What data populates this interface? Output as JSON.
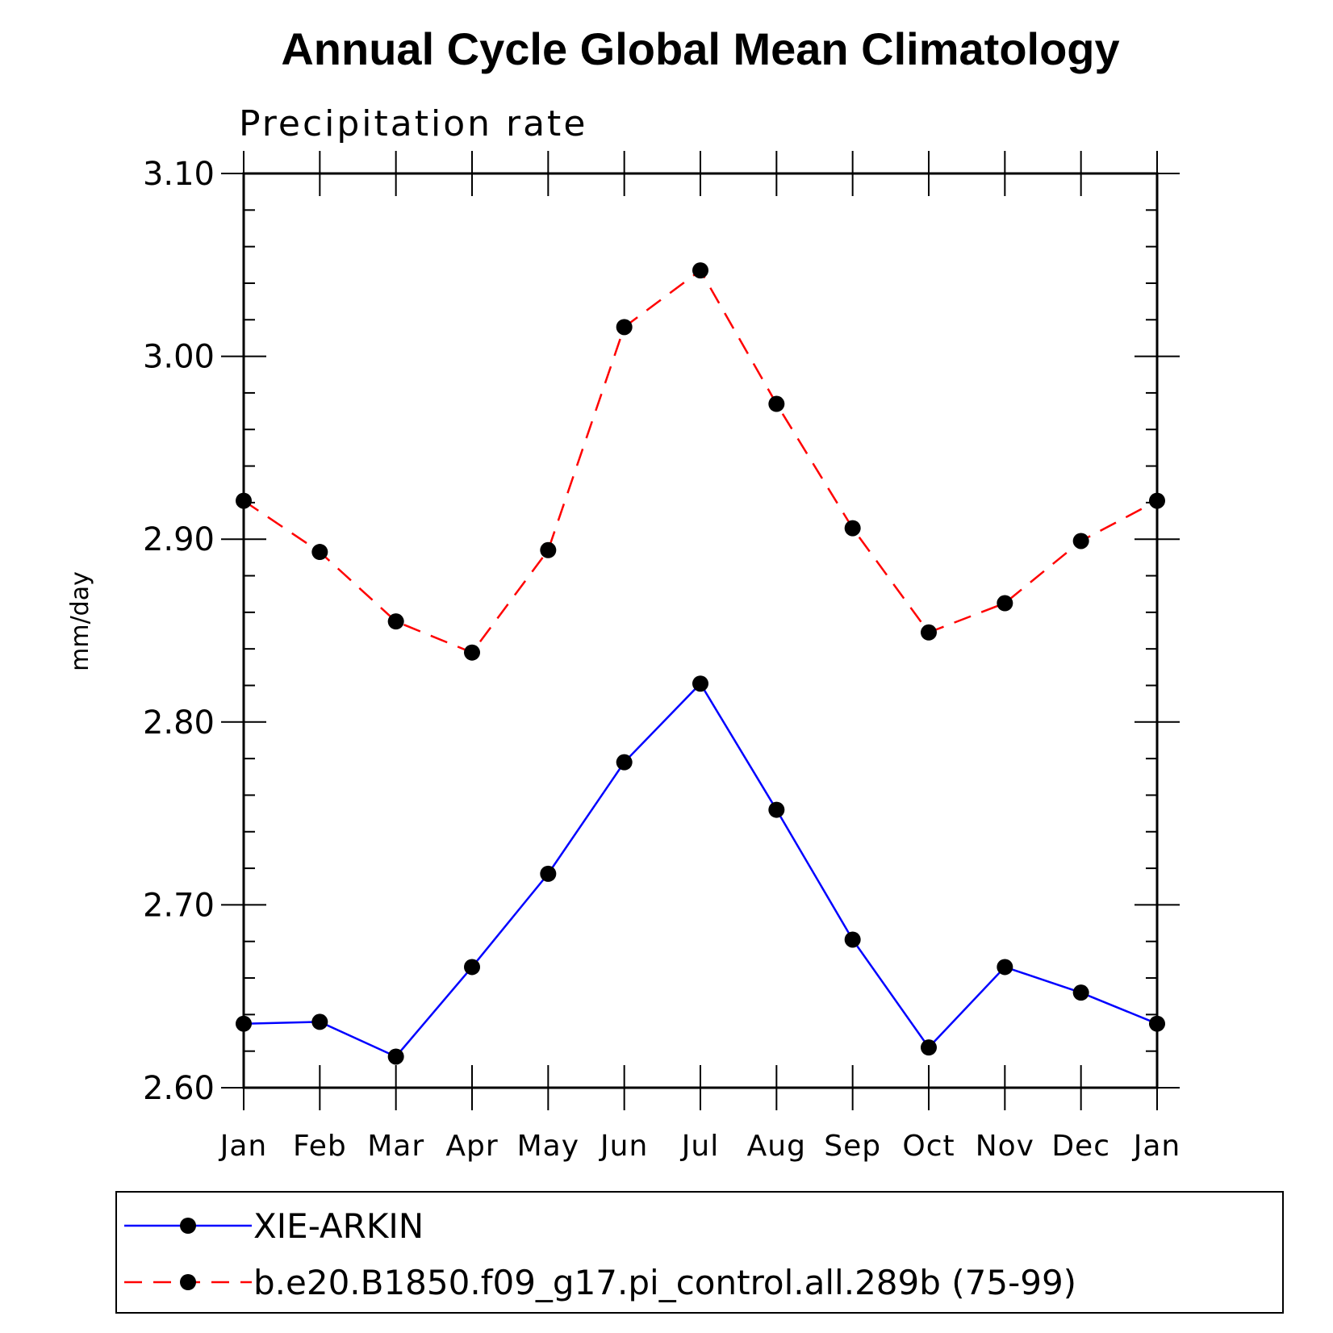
{
  "chart_data": {
    "type": "line",
    "title": "Annual Cycle Global Mean Climatology",
    "subtitle": "Precipitation rate",
    "ylabel": "mm/day",
    "xlabel": "",
    "categories": [
      "Jan",
      "Feb",
      "Mar",
      "Apr",
      "May",
      "Jun",
      "Jul",
      "Aug",
      "Sep",
      "Oct",
      "Nov",
      "Dec",
      "Jan"
    ],
    "ylim": [
      2.6,
      3.1
    ],
    "yticks": [
      "2.60",
      "2.70",
      "2.80",
      "2.90",
      "3.00",
      "3.10"
    ],
    "grid": false,
    "legend_position": "bottom",
    "series": [
      {
        "name": "XIE-ARKIN",
        "color": "#0000ff",
        "line_style": "solid",
        "marker": "filled-circle",
        "values": [
          2.635,
          2.636,
          2.617,
          2.666,
          2.717,
          2.778,
          2.821,
          2.752,
          2.681,
          2.622,
          2.666,
          2.652,
          2.635
        ]
      },
      {
        "name": "b.e20.B1850.f09_g17.pi_control.all.289b (75-99)",
        "color": "#ff0000",
        "line_style": "dashed",
        "marker": "filled-circle",
        "values": [
          2.921,
          2.893,
          2.855,
          2.838,
          2.894,
          3.016,
          3.047,
          2.974,
          2.906,
          2.849,
          2.865,
          2.899,
          2.921
        ]
      }
    ]
  }
}
